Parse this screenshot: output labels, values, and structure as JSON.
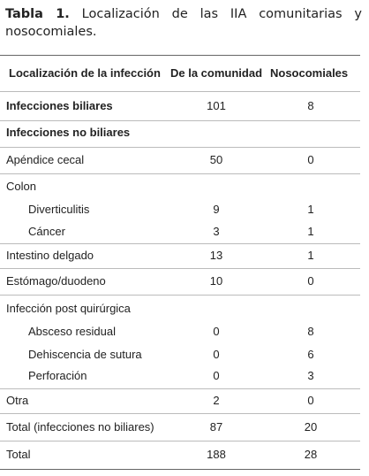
{
  "caption": {
    "label": "Tabla 1.",
    "text": "Localización de las IIA comunitarias y nosocomiales."
  },
  "table": {
    "header": [
      "Localización de la infección",
      "De la comunidad",
      "Nosocomiales"
    ],
    "rows": [
      [
        "Infecciones biliares",
        101,
        8
      ],
      [
        "Infecciones no biliares"
      ],
      [
        "Apéndice cecal",
        50,
        0
      ],
      [
        "Colon"
      ],
      [
        "Diverticulitis",
        9,
        1
      ],
      [
        "Cáncer",
        3,
        1
      ],
      [
        "Intestino delgado",
        13,
        1
      ],
      [
        "Estómago/duodeno",
        10,
        0
      ],
      [
        "Infección post quirúrgica"
      ],
      [
        "Absceso residual",
        0,
        8
      ],
      [
        "Dehiscencia de sutura",
        0,
        6
      ],
      [
        "Perforación",
        0,
        3
      ],
      [
        "Otra",
        2,
        0
      ],
      [
        "Total (infecciones no biliares)",
        87,
        20
      ],
      [
        "Total",
        188,
        28
      ]
    ]
  }
}
